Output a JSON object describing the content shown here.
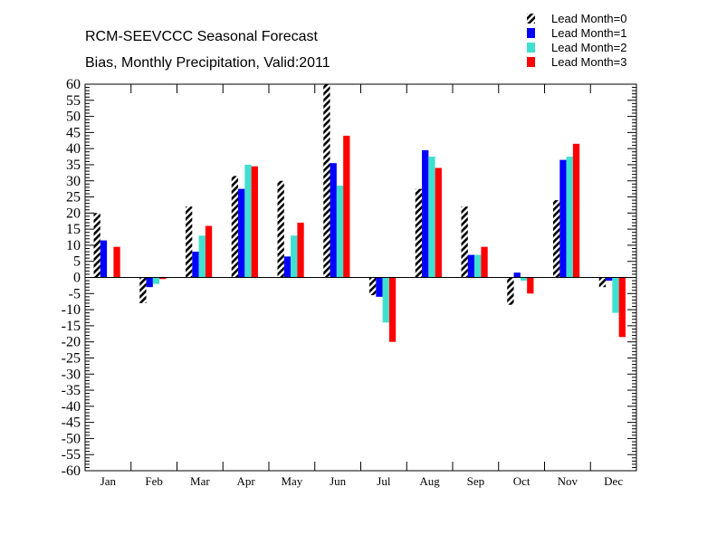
{
  "chart_data": {
    "type": "bar",
    "title": "RCM-SEEVCCC Seasonal Forecast",
    "subtitle": "Bias, Monthly Precipitation, Valid:2011",
    "xlabel": "",
    "ylabel": "",
    "ylim": [
      -60,
      60
    ],
    "yticks": [
      "60",
      "55",
      "50",
      "45",
      "40",
      "35",
      "30",
      "25",
      "20",
      "15",
      "10",
      "5",
      "0",
      "-5",
      "-10",
      "-15",
      "-20",
      "-25",
      "-30",
      "-35",
      "-40",
      "-45",
      "-50",
      "-55",
      "-60"
    ],
    "grid": false,
    "legend_position": "top-right",
    "categories": [
      "Jan",
      "Feb",
      "Mar",
      "Apr",
      "May",
      "Jun",
      "Jul",
      "Aug",
      "Sep",
      "Oct",
      "Nov",
      "Dec"
    ],
    "series": [
      {
        "name": "Lead Month=0",
        "color": "#000000",
        "pattern": "hatched",
        "values": [
          20,
          -8,
          22,
          31.5,
          30,
          60,
          -5.5,
          27.5,
          22,
          -8.5,
          24,
          -3
        ]
      },
      {
        "name": "Lead Month=1",
        "color": "#0000ff",
        "pattern": "solid",
        "values": [
          11.5,
          -3,
          8,
          27.5,
          6.5,
          35.5,
          -6,
          39.5,
          7,
          1.5,
          36.5,
          -1
        ]
      },
      {
        "name": "Lead Month=2",
        "color": "#40e0d0",
        "pattern": "solid",
        "values": [
          0,
          -2,
          13,
          35,
          13,
          28.5,
          -14,
          37.5,
          7,
          -1,
          37.5,
          -11
        ]
      },
      {
        "name": "Lead Month=3",
        "color": "#ff0000",
        "pattern": "solid",
        "values": [
          9.5,
          -0.5,
          16,
          34.5,
          17,
          44,
          -20,
          34,
          9.5,
          -5,
          41.5,
          -18.5
        ]
      }
    ]
  }
}
